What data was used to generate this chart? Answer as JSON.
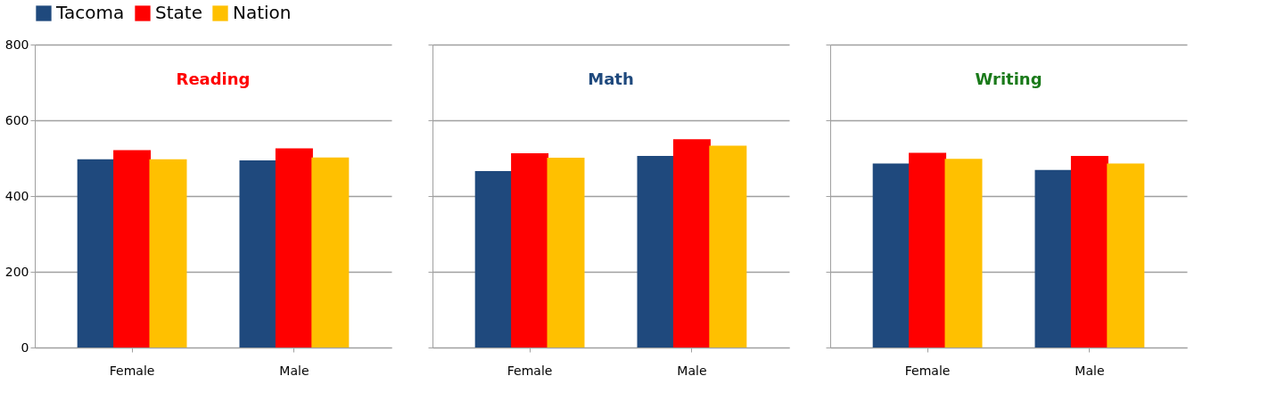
{
  "chart_data": [
    {
      "type": "bar",
      "title": "Reading",
      "categories": [
        "Female",
        "Male"
      ],
      "ylim": [
        0,
        800
      ],
      "yticks": [
        0,
        200,
        400,
        600,
        800
      ],
      "grid": "y",
      "legend": "top",
      "series": [
        {
          "name": "Tacoma",
          "color": "#1f497d",
          "values": [
            497,
            494
          ]
        },
        {
          "name": "State",
          "color": "#ff0000",
          "values": [
            521,
            526
          ]
        },
        {
          "name": "Nation",
          "color": "#ffc000",
          "values": [
            497,
            502
          ]
        }
      ]
    },
    {
      "type": "bar",
      "title": "Math",
      "categories": [
        "Female",
        "Male"
      ],
      "ylim": [
        0,
        800
      ],
      "yticks": [
        0,
        200,
        400,
        600,
        800
      ],
      "grid": "y",
      "tick_labels": "x",
      "series": [
        {
          "name": "Tacoma",
          "color": "#1f497d",
          "values": [
            466,
            506
          ]
        },
        {
          "name": "State",
          "color": "#ff0000",
          "values": [
            513,
            550
          ]
        },
        {
          "name": "Nation",
          "color": "#ffc000",
          "values": [
            501,
            533
          ]
        }
      ]
    },
    {
      "type": "bar",
      "title": "Writing",
      "categories": [
        "Female",
        "Male"
      ],
      "ylim": [
        0,
        800
      ],
      "yticks": [
        0,
        200,
        400,
        600,
        800
      ],
      "grid": "y",
      "tick_labels": "x",
      "series": [
        {
          "name": "Tacoma",
          "color": "#1f497d",
          "values": [
            486,
            469
          ]
        },
        {
          "name": "State",
          "color": "#ff0000",
          "values": [
            514,
            506
          ]
        },
        {
          "name": "Nation",
          "color": "#ffc000",
          "values": [
            498,
            486
          ]
        }
      ]
    }
  ]
}
